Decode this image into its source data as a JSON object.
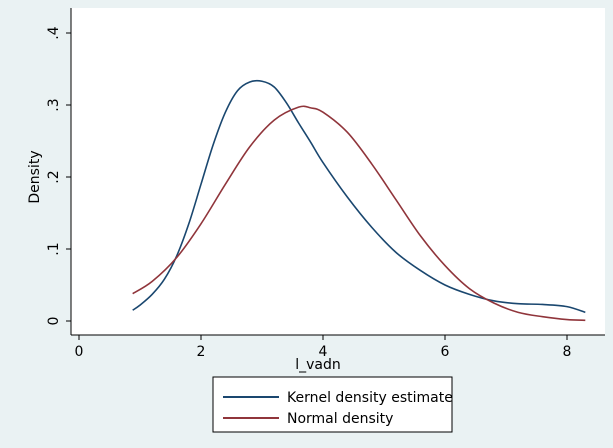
{
  "chart_data": {
    "type": "line",
    "xlabel": "l_vadn",
    "ylabel": "Density",
    "xlim": [
      0,
      8.6
    ],
    "ylim": [
      0,
      0.4
    ],
    "x_ticks": [
      0,
      2,
      4,
      6,
      8
    ],
    "x_tick_labels": [
      "0",
      "2",
      "4",
      "6",
      "8"
    ],
    "y_ticks": [
      0,
      0.1,
      0.2,
      0.3,
      0.4
    ],
    "y_tick_labels": [
      "0",
      ".1",
      ".2",
      ".3",
      ".4"
    ],
    "grid": false,
    "legend_position": "bottom",
    "series": [
      {
        "name": "Kernel density estimate",
        "color": "#1a476f",
        "x": [
          0.88,
          1.0,
          1.2,
          1.4,
          1.6,
          1.8,
          2.0,
          2.2,
          2.4,
          2.6,
          2.8,
          3.0,
          3.2,
          3.4,
          3.6,
          3.8,
          4.0,
          4.4,
          4.8,
          5.2,
          5.6,
          6.0,
          6.4,
          6.8,
          7.2,
          7.6,
          8.0,
          8.3
        ],
        "y": [
          0.015,
          0.022,
          0.037,
          0.058,
          0.09,
          0.135,
          0.19,
          0.245,
          0.29,
          0.32,
          0.332,
          0.333,
          0.325,
          0.303,
          0.275,
          0.248,
          0.22,
          0.172,
          0.13,
          0.095,
          0.07,
          0.05,
          0.037,
          0.028,
          0.024,
          0.023,
          0.02,
          0.012
        ]
      },
      {
        "name": "Normal density",
        "color": "#90353b",
        "x": [
          0.88,
          1.2,
          1.6,
          2.0,
          2.4,
          2.8,
          3.2,
          3.6,
          3.8,
          4.0,
          4.4,
          4.8,
          5.2,
          5.6,
          6.0,
          6.4,
          6.8,
          7.2,
          7.6,
          8.0,
          8.3
        ],
        "y": [
          0.038,
          0.055,
          0.088,
          0.135,
          0.19,
          0.242,
          0.279,
          0.297,
          0.296,
          0.29,
          0.262,
          0.218,
          0.168,
          0.118,
          0.077,
          0.045,
          0.025,
          0.012,
          0.006,
          0.002,
          0.001
        ]
      }
    ]
  }
}
